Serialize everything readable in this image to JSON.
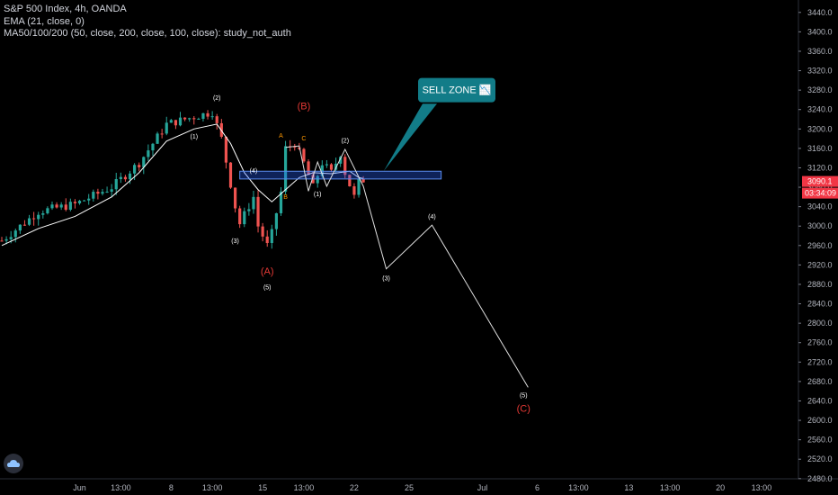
{
  "legend": {
    "symbol_line": "S&P 500 Index, 4h, OANDA",
    "ema_line": "EMA (21, close, 0)",
    "ma_line": "MA50/100/200 (50, close, 200, close, 100, close): study_not_auth"
  },
  "price_badge": {
    "price": "3090.1",
    "countdown": "03:34:09"
  },
  "chart_data": {
    "type": "candlestick",
    "title": "S&P 500 Index, 4h, OANDA",
    "ylim": [
      2460,
      3460
    ],
    "y_ticks": [
      3440,
      3400,
      3360,
      3320,
      3280,
      3240,
      3200,
      3160,
      3120,
      3080,
      3040,
      3000,
      2960,
      2920,
      2880,
      2840,
      2800,
      2760,
      2720,
      2680,
      2640,
      2600,
      2560,
      2520,
      2480
    ],
    "x_ticks": [
      {
        "label": "Jun",
        "bar": 17
      },
      {
        "label": "13:00",
        "bar": 26
      },
      {
        "label": "8",
        "bar": 37
      },
      {
        "label": "13:00",
        "bar": 46
      },
      {
        "label": "15",
        "bar": 57
      },
      {
        "label": "13:00",
        "bar": 66
      },
      {
        "label": "22",
        "bar": 77
      },
      {
        "label": "25",
        "bar": 89
      },
      {
        "label": "Jul",
        "bar": 105
      },
      {
        "label": "6",
        "bar": 117
      },
      {
        "label": "13:00",
        "bar": 126
      },
      {
        "label": "13",
        "bar": 137
      },
      {
        "label": "13:00",
        "bar": 146
      },
      {
        "label": "20",
        "bar": 157
      },
      {
        "label": "13:00",
        "bar": 166
      }
    ],
    "close_path": [
      [
        0,
        2970
      ],
      [
        8,
        3030
      ],
      [
        16,
        3045
      ],
      [
        24,
        3080
      ],
      [
        30,
        3130
      ],
      [
        36,
        3210
      ],
      [
        42,
        3225
      ],
      [
        46,
        3235
      ],
      [
        48,
        3180
      ],
      [
        51,
        3040
      ],
      [
        52,
        3005
      ],
      [
        55,
        3060
      ],
      [
        56,
        3000
      ],
      [
        58,
        2960
      ],
      [
        59,
        2985
      ],
      [
        61,
        3070
      ],
      [
        62,
        3160
      ],
      [
        64,
        3170
      ],
      [
        66,
        3130
      ],
      [
        68,
        3080
      ],
      [
        70,
        3130
      ],
      [
        72,
        3110
      ],
      [
        74,
        3150
      ],
      [
        75,
        3110
      ],
      [
        76,
        3085
      ],
      [
        77,
        3060
      ],
      [
        78,
        3090
      ],
      [
        79,
        3095
      ]
    ],
    "ema21": [
      [
        0,
        2960
      ],
      [
        8,
        2995
      ],
      [
        16,
        3020
      ],
      [
        24,
        3060
      ],
      [
        30,
        3110
      ],
      [
        36,
        3175
      ],
      [
        42,
        3200
      ],
      [
        47,
        3210
      ],
      [
        50,
        3170
      ],
      [
        53,
        3110
      ],
      [
        56,
        3075
      ],
      [
        59,
        3050
      ],
      [
        62,
        3075
      ],
      [
        65,
        3100
      ],
      [
        68,
        3110
      ],
      [
        72,
        3108
      ],
      [
        76,
        3113
      ],
      [
        78,
        3100
      ],
      [
        79,
        3098
      ]
    ],
    "sell_zone": {
      "y_low": 3097,
      "y_high": 3113,
      "bar_start": 52,
      "bar_end": 96,
      "label": "SELL ZONE 📉"
    },
    "wave_path": [
      [
        62,
        3162
      ],
      [
        65,
        3165
      ],
      [
        67,
        3072
      ],
      [
        69,
        3132
      ],
      [
        71,
        3082
      ],
      [
        75,
        3158
      ],
      [
        79,
        3082
      ],
      [
        84,
        2912
      ],
      [
        94,
        3002
      ],
      [
        115,
        2668
      ]
    ],
    "annotations": [
      {
        "text": "(2)",
        "bar": 47,
        "y": 3260,
        "color": "#ffffff"
      },
      {
        "text": "(1)",
        "bar": 42,
        "y": 3180,
        "color": "#ffffff"
      },
      {
        "text": "(3)",
        "bar": 51,
        "y": 2965,
        "color": "#ffffff"
      },
      {
        "text": "(4)",
        "bar": 55,
        "y": 3110,
        "color": "#ffffff"
      },
      {
        "text": "(5)",
        "bar": 58,
        "y": 2870,
        "color": "#ffffff"
      },
      {
        "text": "(A)",
        "bar": 58,
        "y": 2900,
        "color": "#e53935",
        "size": 11
      },
      {
        "text": "(B)",
        "bar": 66,
        "y": 3240,
        "color": "#e53935",
        "size": 11
      },
      {
        "text": "A",
        "bar": 61,
        "y": 3182,
        "color": "#ff9800"
      },
      {
        "text": "C",
        "bar": 66,
        "y": 3176,
        "color": "#ff9800"
      },
      {
        "text": "B",
        "bar": 62,
        "y": 3056,
        "color": "#ff9800"
      },
      {
        "text": "(1)",
        "bar": 69,
        "y": 3062,
        "color": "#ffffff"
      },
      {
        "text": "(2)",
        "bar": 75,
        "y": 3172,
        "color": "#ffffff"
      },
      {
        "text": "(3)",
        "bar": 84,
        "y": 2888,
        "color": "#ffffff"
      },
      {
        "text": "(4)",
        "bar": 94,
        "y": 3015,
        "color": "#ffffff"
      },
      {
        "text": "(5)",
        "bar": 114,
        "y": 2647,
        "color": "#ffffff"
      },
      {
        "text": "(C)",
        "bar": 114,
        "y": 2618,
        "color": "#e53935",
        "size": 11
      }
    ]
  },
  "colors": {
    "up": "#26a69a",
    "down": "#ef5350",
    "bg": "#000000",
    "badge": "#f23645",
    "zone": "#2962ff",
    "callout": "#127c88"
  }
}
